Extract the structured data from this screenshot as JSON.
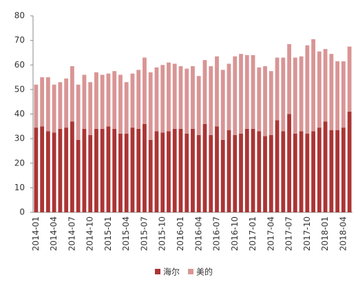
{
  "chart_data": {
    "type": "stacked_bar",
    "categories": [
      "2014-01",
      null,
      null,
      "2014-04",
      null,
      null,
      "2014-07",
      null,
      null,
      "2014-10",
      null,
      null,
      "2015-01",
      null,
      null,
      "2015-04",
      null,
      null,
      "2015-07",
      null,
      null,
      "2015-10",
      null,
      null,
      "2016-01",
      null,
      null,
      "2016-04",
      null,
      null,
      "2016-07",
      null,
      null,
      "2016-10",
      null,
      null,
      "2017-01",
      null,
      null,
      "2017-04",
      null,
      null,
      "2017-07",
      null,
      null,
      "2017-10",
      null,
      null,
      "2018-01",
      null,
      null,
      "2018-04",
      null
    ],
    "series": [
      {
        "name": "海尔",
        "color": "#ab3535",
        "values": [
          34.5,
          35,
          33,
          32.5,
          34,
          34.5,
          37,
          29.5,
          34,
          31.5,
          34,
          34,
          35,
          34,
          32,
          32,
          34.5,
          34,
          36,
          29.5,
          33,
          32.5,
          33,
          34,
          34,
          32,
          34,
          31.5,
          36,
          31.5,
          35,
          29.5,
          33.5,
          31.5,
          32,
          34,
          34,
          33,
          31,
          31.5,
          37.5,
          33,
          40,
          32,
          33,
          32,
          33,
          34.5,
          37,
          33.5,
          33.5,
          34.5,
          41
        ]
      },
      {
        "name": "美的",
        "color": "#d99595",
        "values": [
          17.5,
          20,
          22,
          19.5,
          19,
          20,
          22.5,
          22.5,
          22,
          21.5,
          23,
          22,
          21.5,
          23.5,
          24,
          21,
          22,
          24,
          27,
          27.5,
          26,
          27.5,
          28,
          26.5,
          25.5,
          26.5,
          25.5,
          24,
          26,
          28,
          28.5,
          28.5,
          27,
          32,
          32.5,
          30,
          30,
          26,
          28.5,
          26,
          25.5,
          30,
          28.5,
          31,
          30.5,
          36,
          37.5,
          31,
          29.5,
          31,
          28,
          27,
          26.5
        ]
      }
    ],
    "ylim": [
      0,
      80
    ],
    "yticks": [
      0,
      10,
      20,
      30,
      40,
      50,
      60,
      70,
      80
    ],
    "grid": false,
    "legend": "bottom"
  }
}
